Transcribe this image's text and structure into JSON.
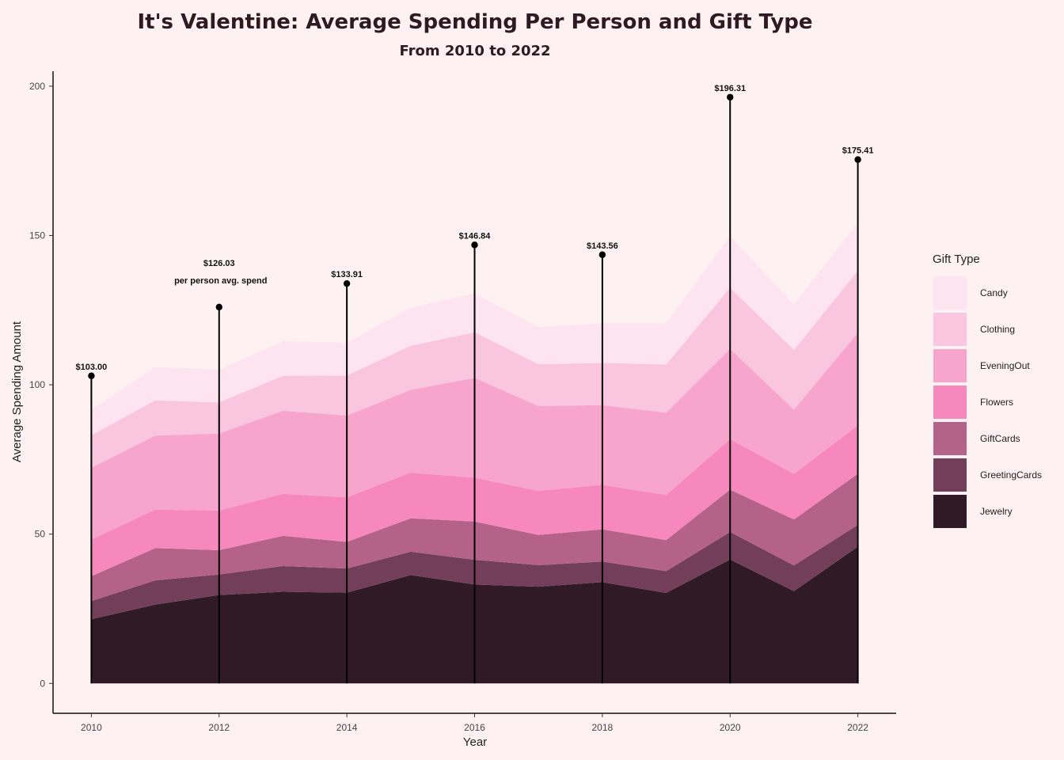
{
  "chart_data": {
    "type": "area",
    "title": "It's Valentine: Average Spending Per Person and Gift Type",
    "subtitle": "From 2010 to 2022",
    "xlabel": "Year",
    "ylabel": "Average Spending Amount",
    "x": [
      2010,
      2011,
      2012,
      2013,
      2014,
      2015,
      2016,
      2017,
      2018,
      2019,
      2020,
      2021,
      2022
    ],
    "xlim": [
      2009.4,
      2022.6
    ],
    "ylim": [
      -10,
      205
    ],
    "x_ticks": [
      2010,
      2012,
      2014,
      2016,
      2018,
      2020,
      2022
    ],
    "y_ticks": [
      0,
      50,
      100,
      150,
      200
    ],
    "stacked": true,
    "grid": false,
    "legend": {
      "title": "Gift Type",
      "position": "right"
    },
    "series": [
      {
        "name": "Jewelry",
        "color": "#2f1a26",
        "values": [
          21.5,
          26.4,
          29.6,
          30.7,
          30.4,
          36.3,
          33.1,
          32.4,
          33.9,
          30.3,
          41.5,
          30.9,
          45.8
        ]
      },
      {
        "name": "GreetingCards",
        "color": "#733e5a",
        "values": [
          6.1,
          8.1,
          6.9,
          8.6,
          8.1,
          7.8,
          8.3,
          7.2,
          6.9,
          7.3,
          9.2,
          8.6,
          7.3
        ]
      },
      {
        "name": "GiftCards",
        "color": "#b46287",
        "values": [
          8.3,
          10.8,
          8.1,
          10.1,
          8.9,
          11.2,
          12.8,
          10.1,
          10.8,
          10.4,
          14.2,
          15.4,
          17.1
        ]
      },
      {
        "name": "Flowers",
        "color": "#f688bd",
        "values": [
          12.3,
          12.9,
          13.3,
          14.1,
          14.9,
          15.3,
          14.7,
          14.8,
          14.9,
          15.1,
          16.9,
          15.3,
          16.2
        ]
      },
      {
        "name": "EveningOut",
        "color": "#f7a5cc",
        "values": [
          24.0,
          24.8,
          25.8,
          27.8,
          27.4,
          27.7,
          33.4,
          28.4,
          26.7,
          27.6,
          30.2,
          21.5,
          31.0
        ]
      },
      {
        "name": "Clothing",
        "color": "#f9c5df",
        "values": [
          10.9,
          11.8,
          10.4,
          11.7,
          13.4,
          14.8,
          15.3,
          14.0,
          14.1,
          16.1,
          20.5,
          20.0,
          20.8
        ]
      },
      {
        "name": "Candy",
        "color": "#fde4f0",
        "values": [
          8.6,
          11.1,
          10.9,
          11.6,
          11.0,
          12.7,
          13.0,
          12.4,
          13.3,
          13.8,
          17.3,
          15.2,
          16.1
        ]
      }
    ],
    "lollipops": {
      "x": [
        2010,
        2012,
        2014,
        2016,
        2018,
        2020,
        2022
      ],
      "values": [
        103.0,
        126.03,
        133.91,
        146.84,
        143.56,
        196.31,
        175.41
      ],
      "labels": [
        "$103.00",
        "$126.03",
        "$133.91",
        "$146.84",
        "$143.56",
        "$196.31",
        "$175.41"
      ],
      "annotation": "per person avg. spend"
    }
  }
}
